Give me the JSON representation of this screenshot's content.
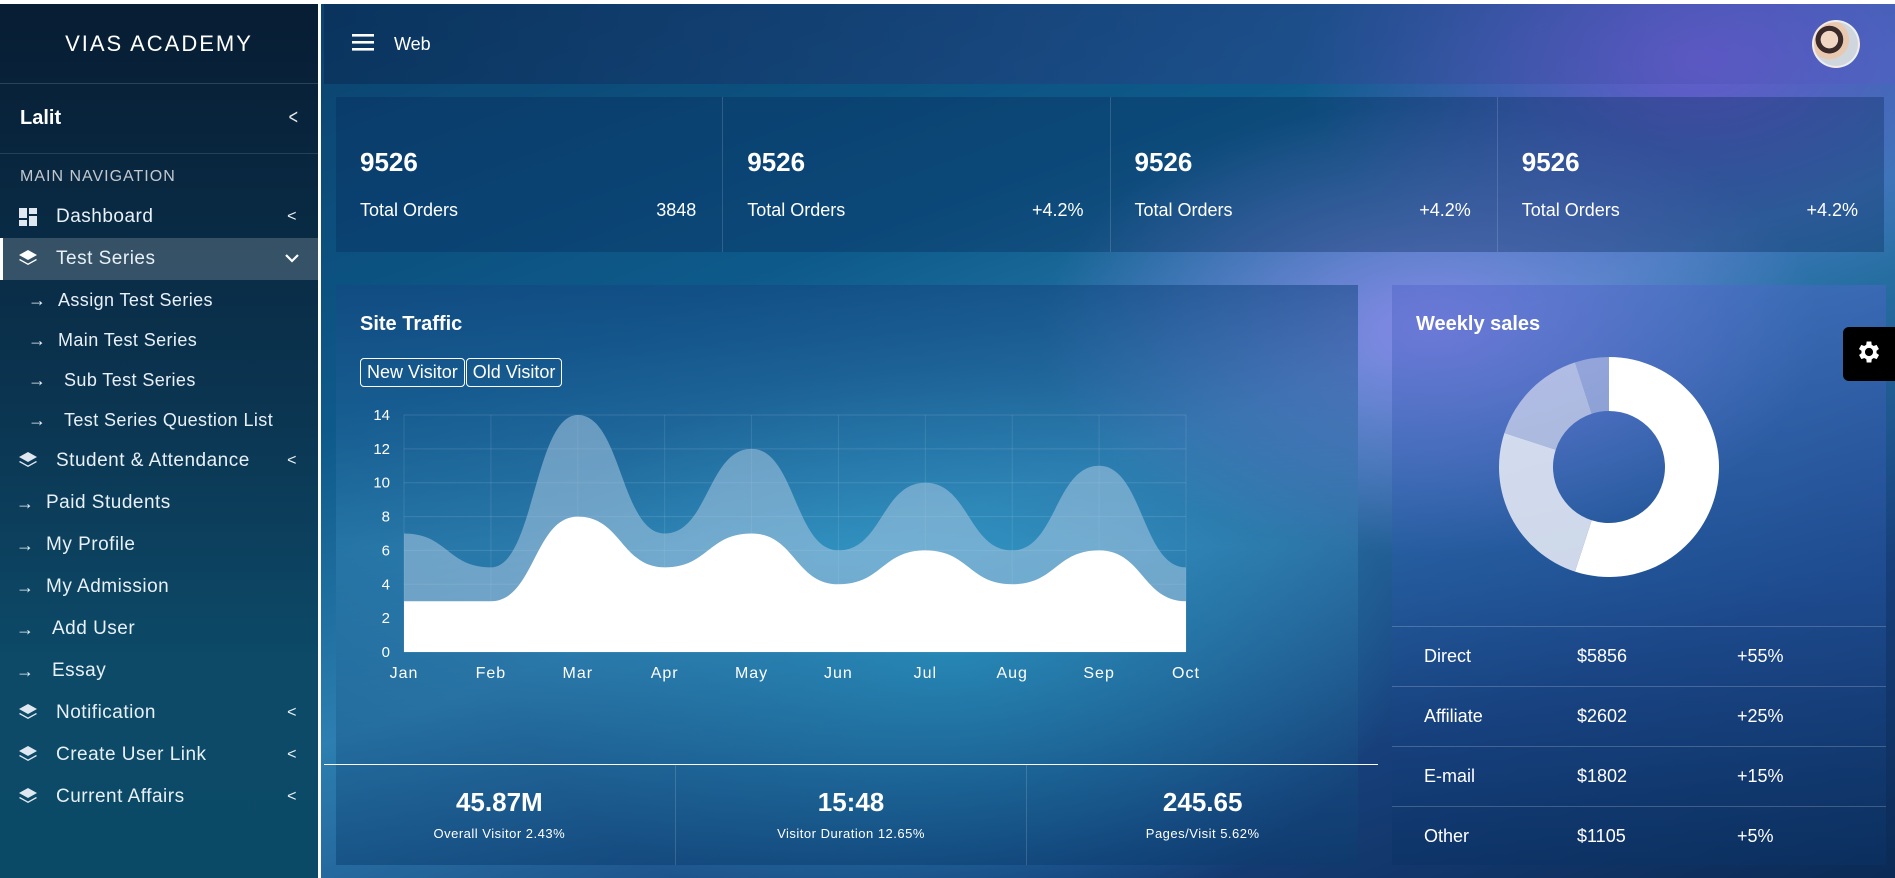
{
  "sidebar": {
    "brand": "VIAS ACADEMY",
    "user": "Lalit",
    "nav_label": "MAIN NAVIGATION",
    "items": {
      "dashboard": "Dashboard",
      "test_series": "Test Series",
      "assign_test_series": "Assign Test Series",
      "main_test_series": "Main Test Series",
      "sub_test_series": "Sub Test Series",
      "test_series_question_list": "Test Series Question List",
      "student_attendance": "Student & Attendance",
      "paid_students": "Paid Students",
      "my_profile": "My Profile",
      "my_admission": "My Admission",
      "add_user": "Add User",
      "essay": "Essay",
      "notification": "Notification",
      "create_user_link": "Create User Link",
      "current_affairs": "Current Affairs"
    }
  },
  "header": {
    "title": "Web"
  },
  "stats": [
    {
      "value": "9526",
      "label": "Total Orders",
      "extra": "3848"
    },
    {
      "value": "9526",
      "label": "Total Orders",
      "extra": "+4.2%"
    },
    {
      "value": "9526",
      "label": "Total Orders",
      "extra": "+4.2%"
    },
    {
      "value": "9526",
      "label": "Total Orders",
      "extra": "+4.2%"
    }
  ],
  "traffic": {
    "title": "Site Traffic",
    "legend_new": "New Visitor",
    "legend_old": "Old Visitor",
    "footer": [
      {
        "value": "45.87M",
        "caption": "Overall Visitor 2.43%"
      },
      {
        "value": "15:48",
        "caption": "Visitor Duration 12.65%"
      },
      {
        "value": "245.65",
        "caption": "Pages/Visit 5.62%"
      }
    ]
  },
  "chart_data": [
    {
      "type": "area",
      "title": "Site Traffic",
      "categories": [
        "Jan",
        "Feb",
        "Mar",
        "Apr",
        "May",
        "Jun",
        "Jul",
        "Aug",
        "Sep",
        "Oct"
      ],
      "yticks": [
        0,
        2,
        4,
        6,
        8,
        10,
        12,
        14
      ],
      "ylim": [
        0,
        14
      ],
      "series": [
        {
          "name": "Old Visitor",
          "values": [
            7,
            5,
            14,
            7,
            12,
            6,
            10,
            6,
            11,
            5
          ]
        },
        {
          "name": "New Visitor",
          "values": [
            3,
            3,
            8,
            5,
            7,
            4,
            6,
            4,
            6,
            3
          ]
        }
      ]
    },
    {
      "type": "pie",
      "title": "Weekly sales",
      "categories": [
        "Direct",
        "Affiliate",
        "E-mail",
        "Other"
      ],
      "values": [
        55,
        25,
        15,
        5
      ]
    }
  ],
  "weekly": {
    "title": "Weekly sales",
    "rows": [
      {
        "name": "Direct",
        "amount": "$5856",
        "pct": "+55%"
      },
      {
        "name": "Affiliate",
        "amount": "$2602",
        "pct": "+25%"
      },
      {
        "name": "E-mail",
        "amount": "$1802",
        "pct": "+15%"
      },
      {
        "name": "Other",
        "amount": "$1105",
        "pct": "+5%"
      }
    ]
  }
}
